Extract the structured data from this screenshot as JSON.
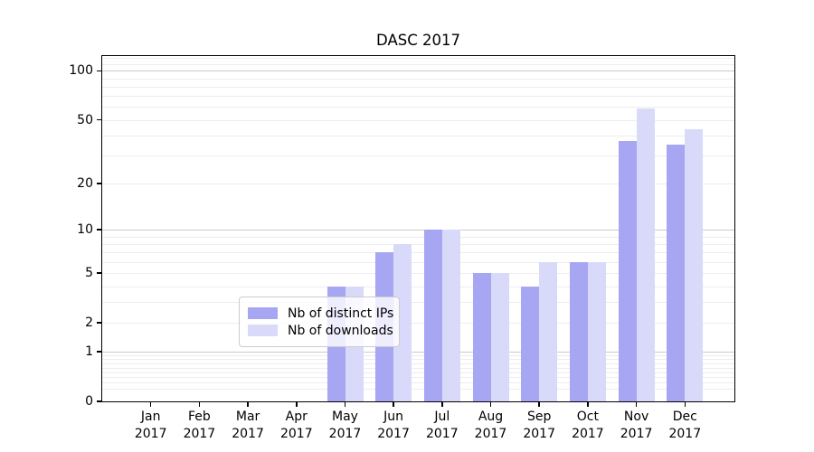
{
  "chart_data": {
    "type": "bar",
    "title": "DASC 2017",
    "xlabel": "",
    "ylabel": "",
    "categories": [
      "Jan 2017",
      "Feb 2017",
      "Mar 2017",
      "Apr 2017",
      "May 2017",
      "Jun 2017",
      "Jul 2017",
      "Aug 2017",
      "Sep 2017",
      "Oct 2017",
      "Nov 2017",
      "Dec 2017"
    ],
    "series": [
      {
        "name": "Nb of distinct IPs",
        "color": "#a6a6f2",
        "values": [
          0,
          0,
          0,
          0,
          4,
          7,
          10,
          5,
          4,
          6,
          37,
          35
        ]
      },
      {
        "name": "Nb of downloads",
        "color": "#d9d9fa",
        "values": [
          0,
          0,
          0,
          0,
          4,
          8,
          10,
          5,
          6,
          6,
          59,
          44
        ]
      }
    ],
    "yscale": "log1p",
    "ytick_values": [
      0,
      1,
      2,
      5,
      10,
      20,
      50,
      100
    ],
    "ylim": [
      0,
      123.3
    ],
    "grid": true,
    "legend_position": "lower center"
  }
}
